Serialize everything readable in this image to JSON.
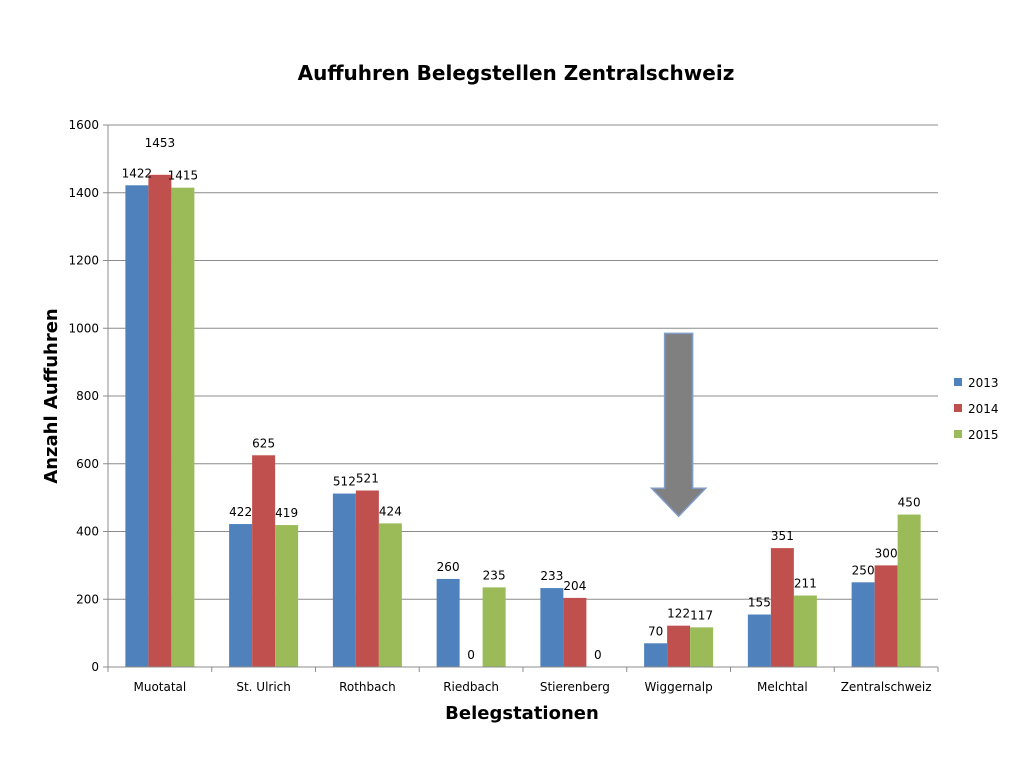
{
  "chart_data": {
    "type": "bar",
    "title": "Auffuhren Belegstellen Zentralschweiz",
    "xlabel": "Belegstationen",
    "ylabel": "Anzahl Auffuhren",
    "ylim": [
      0,
      1600
    ],
    "yticks": [
      "0",
      "200",
      "400",
      "600",
      "800",
      "1000",
      "1200",
      "1400",
      "1600"
    ],
    "ytick_values": [
      0,
      200,
      400,
      600,
      800,
      1000,
      1200,
      1400,
      1600
    ],
    "grid": true,
    "legend_position": "right",
    "categories": [
      "Muotatal",
      "St. Ulrich",
      "Rothbach",
      "Riedbach",
      "Stierenberg",
      "Wiggernalp",
      "Melchtal",
      "Zentralschweiz"
    ],
    "series": [
      {
        "name": "2013",
        "color": "#4F81BD",
        "values": [
          1422,
          422,
          512,
          260,
          233,
          70,
          155,
          250
        ],
        "labels": [
          "1422",
          "422",
          "512",
          "260",
          "233",
          "70",
          "155",
          "250"
        ]
      },
      {
        "name": "2014",
        "color": "#C0504D",
        "values": [
          1453,
          625,
          521,
          0,
          204,
          122,
          351,
          300
        ],
        "labels": [
          "1453",
          "625",
          "521",
          "0",
          "204",
          "122",
          "351",
          "300"
        ]
      },
      {
        "name": "2015",
        "color": "#9BBB59",
        "values": [
          1415,
          419,
          424,
          235,
          0,
          117,
          211,
          450
        ],
        "labels": [
          "1415",
          "419",
          "424",
          "235",
          "0",
          "117",
          "211",
          "450"
        ]
      }
    ],
    "annotations": [
      {
        "type": "arrow-down",
        "category": "Wiggernalp",
        "from_value": 985,
        "to_value": 445,
        "color": "#808080"
      }
    ]
  }
}
